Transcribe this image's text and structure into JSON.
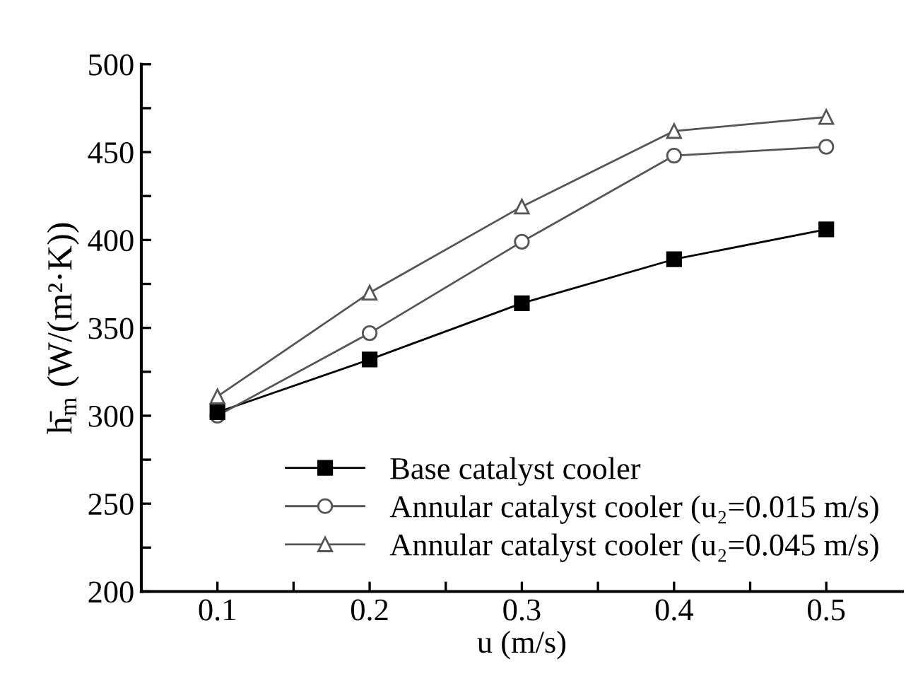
{
  "chart_data": {
    "type": "line",
    "xlabel": "u (m/s)",
    "ylabel": "h̄$_{m}$ (W/(m²·K))",
    "x": [
      0.1,
      0.2,
      0.3,
      0.4,
      0.5
    ],
    "series": [
      {
        "name": "Base catalyst cooler",
        "color": "#000000",
        "marker": "square",
        "values": [
          302,
          332,
          364,
          389,
          406
        ]
      },
      {
        "name": "Annular catalyst cooler (u₂=0.015 m/s)",
        "color": "#555555",
        "marker": "circle",
        "values": [
          300,
          347,
          399,
          448,
          453
        ]
      },
      {
        "name": "Annular catalyst cooler (u₂=0.045 m/s)",
        "color": "#555555",
        "marker": "triangle",
        "values": [
          311,
          370,
          419,
          462,
          470
        ]
      }
    ],
    "xlim": [
      0.05,
      0.55
    ],
    "xticks": [
      0.1,
      {
        "value": 0.15,
        "label": null
      },
      0.2,
      {
        "value": 0.25,
        "label": null
      },
      0.3,
      {
        "value": 0.35,
        "label": null
      },
      0.4,
      {
        "value": 0.45,
        "label": null
      },
      0.5
    ],
    "ylim": [
      200,
      500
    ],
    "yticks": [
      200,
      {
        "value": 225,
        "label": null
      },
      250,
      {
        "value": 275,
        "label": null
      },
      300,
      {
        "value": 325,
        "label": null
      },
      350,
      {
        "value": 375,
        "label": null
      },
      400,
      {
        "value": 425,
        "label": null
      },
      450,
      {
        "value": 475,
        "label": null
      },
      500
    ],
    "grid": false,
    "legend": "bottom",
    "line_style": "solid"
  }
}
